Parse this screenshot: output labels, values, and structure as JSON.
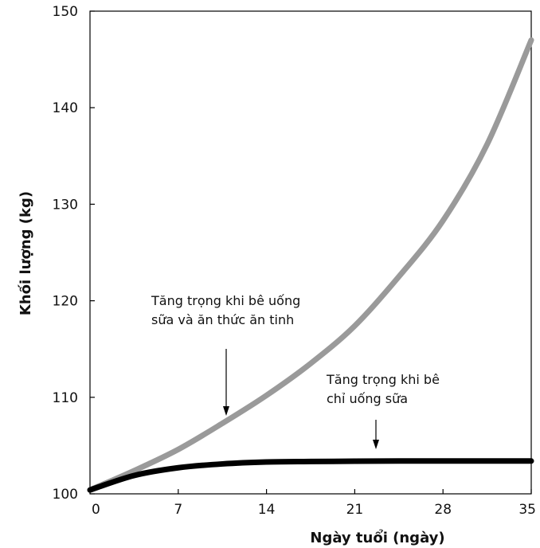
{
  "chart_data": {
    "type": "line",
    "xlabel": "Ngày tuổi (ngày)",
    "ylabel": "Khối lượng (kg)",
    "xlim": [
      0,
      35
    ],
    "ylim": [
      100,
      150
    ],
    "x_ticks": [
      0,
      7,
      14,
      21,
      28,
      35
    ],
    "y_ticks": [
      100,
      110,
      120,
      130,
      140,
      150
    ],
    "grid": false,
    "series": [
      {
        "color": "#9a9a9a",
        "x": [
          0,
          3.5,
          7,
          10.5,
          14,
          17.5,
          21,
          24.5,
          28,
          31.5,
          35
        ],
        "y": [
          100.4,
          102.4,
          104.6,
          107.3,
          110.2,
          113.5,
          117.4,
          122.5,
          128.3,
          136.2,
          147.0
        ]
      },
      {
        "color": "#000000",
        "x": [
          0,
          3.5,
          7,
          10.5,
          14,
          17.5,
          21,
          24.5,
          28,
          31.5,
          35
        ],
        "y": [
          100.4,
          101.9,
          102.7,
          103.1,
          103.3,
          103.35,
          103.38,
          103.4,
          103.4,
          103.4,
          103.4
        ]
      }
    ],
    "annotations": [
      {
        "lines": [
          "Tăng trọng khi bê uống",
          "sữa và ăn thức ăn tinh"
        ]
      },
      {
        "lines": [
          "Tăng trọng khi bê",
          "chỉ uống sữa"
        ]
      }
    ]
  }
}
